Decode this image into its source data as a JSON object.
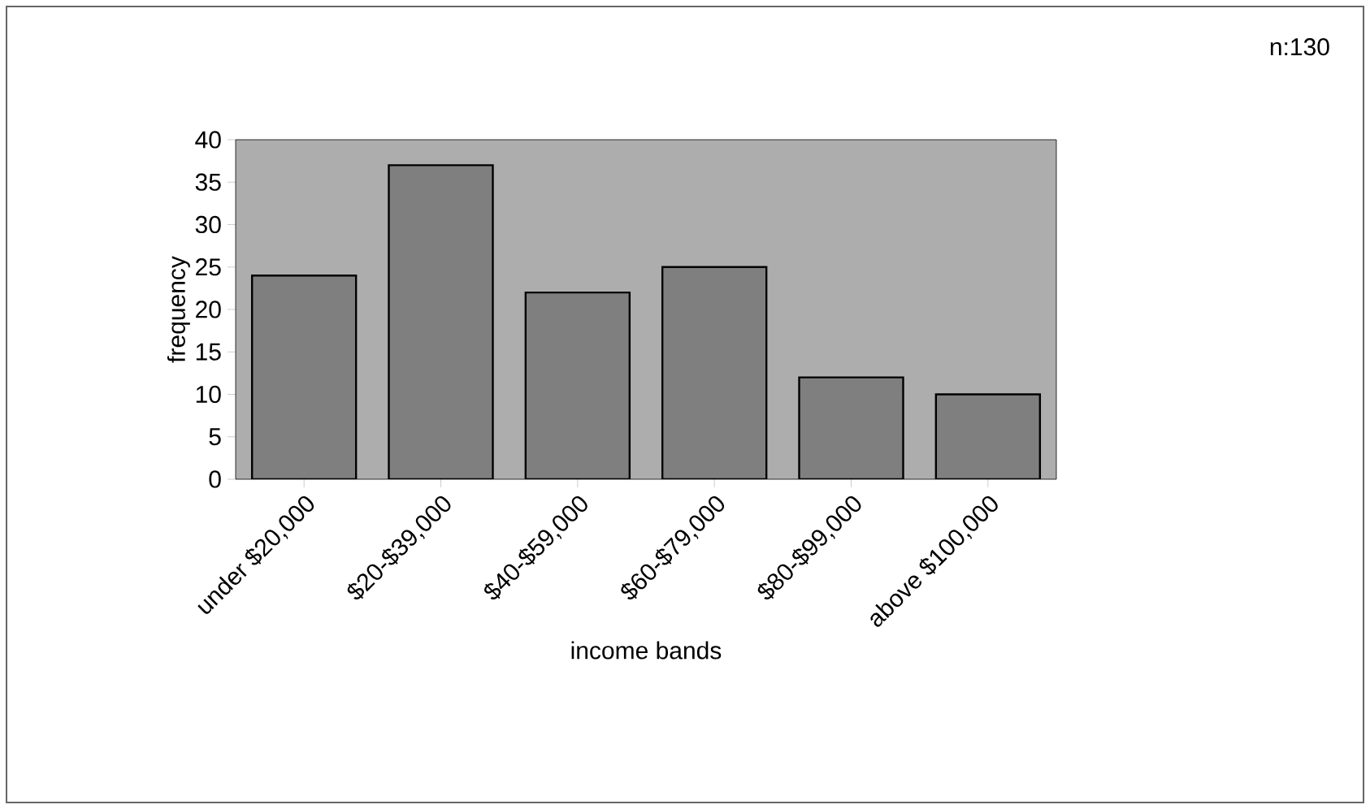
{
  "chart_data": {
    "type": "bar",
    "categories": [
      "under $20,000",
      "$20-$39,000",
      "$40-$59,000",
      "$60-$79,000",
      "$80-$99,000",
      "above $100,000"
    ],
    "values": [
      24,
      37,
      22,
      25,
      12,
      10
    ],
    "color": "#7f7f7f",
    "ylim": [
      0,
      40
    ],
    "yticks": [
      0,
      5,
      10,
      15,
      20,
      25,
      30,
      35,
      40
    ],
    "xlabel": "income bands",
    "ylabel": "frequency",
    "annotations": [
      "n:130"
    ]
  }
}
